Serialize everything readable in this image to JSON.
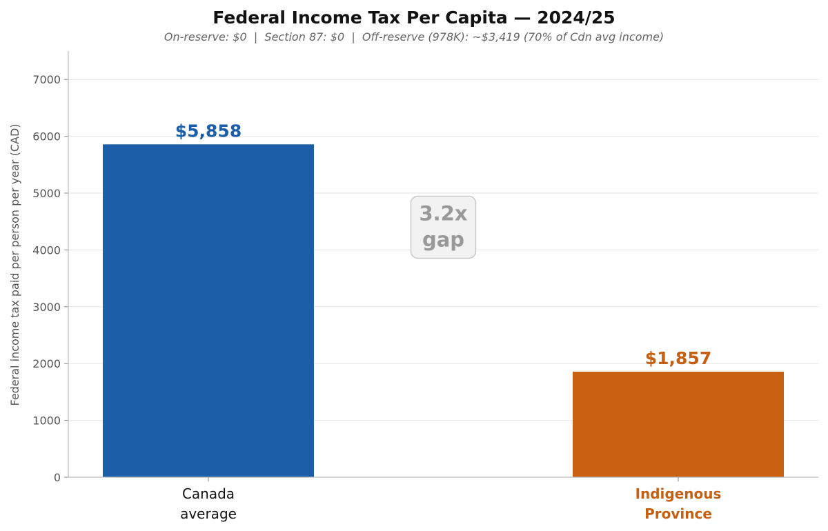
{
  "chart_data": {
    "type": "bar",
    "title": "Federal Income Tax Per Capita — 2024/25",
    "subtitle": "On-reserve: $0  |  Section 87: $0  |  Off-reserve (978K): ~$3,419 (70% of Cdn avg income)",
    "ylabel": "Federal income tax paid per person per year (CAD)",
    "xlabel": "",
    "ylim": [
      0,
      7500
    ],
    "yticks": [
      0,
      1000,
      2000,
      3000,
      4000,
      5000,
      6000,
      7000
    ],
    "grid": "horizontal",
    "categories": [
      {
        "lines": [
          "Canada",
          "average"
        ],
        "color": "#111111",
        "bold": false
      },
      {
        "lines": [
          "Indigenous",
          "Province"
        ],
        "color": "#C55F12",
        "bold": true
      }
    ],
    "values": [
      5858,
      1857
    ],
    "bar_colors": [
      "#1C5FA8",
      "#C86112"
    ],
    "data_labels": [
      "$5,858",
      "$1,857"
    ],
    "data_label_colors": [
      "#1C5FA8",
      "#C55F12"
    ],
    "annotation": {
      "lines": [
        "3.2x",
        "gap"
      ],
      "y_value": 4400
    }
  }
}
